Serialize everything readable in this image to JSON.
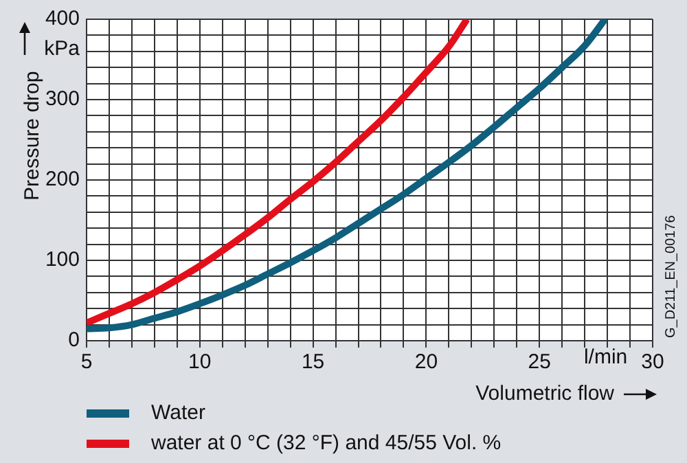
{
  "chart_data": {
    "type": "line",
    "xlabel": "Volumetric flow",
    "ylabel": "Pressure drop",
    "xlim": [
      5,
      30
    ],
    "xticks": [
      5,
      {
        "value": 6,
        "label": null
      },
      {
        "value": 7,
        "label": null
      },
      {
        "value": 8,
        "label": null
      },
      {
        "value": 9,
        "label": null
      },
      10,
      {
        "value": 11,
        "label": null
      },
      {
        "value": 12,
        "label": null
      },
      {
        "value": 13,
        "label": null
      },
      {
        "value": 14,
        "label": null
      },
      15,
      {
        "value": 16,
        "label": null
      },
      {
        "value": 17,
        "label": null
      },
      {
        "value": 18,
        "label": null
      },
      {
        "value": 19,
        "label": null
      },
      20,
      {
        "value": 21,
        "label": null
      },
      {
        "value": 22,
        "label": null
      },
      {
        "value": 23,
        "label": null
      },
      {
        "value": 24,
        "label": null
      },
      25,
      {
        "value": 26,
        "label": null
      },
      {
        "value": 27,
        "label": null
      },
      {
        "value": 28,
        "label": null
      },
      {
        "value": 29,
        "label": null
      },
      30
    ],
    "ylim": [
      0,
      400
    ],
    "yticks": [
      0,
      {
        "value": 20,
        "label": null
      },
      {
        "value": 40,
        "label": null
      },
      {
        "value": 60,
        "label": null
      },
      {
        "value": 80,
        "label": null
      },
      100,
      {
        "value": 120,
        "label": null
      },
      {
        "value": 140,
        "label": null
      },
      {
        "value": 160,
        "label": null
      },
      {
        "value": 180,
        "label": null
      },
      200,
      {
        "value": 220,
        "label": null
      },
      {
        "value": 240,
        "label": null
      },
      {
        "value": 260,
        "label": null
      },
      {
        "value": 280,
        "label": null
      },
      300,
      {
        "value": 320,
        "label": null
      },
      {
        "value": 340,
        "label": null
      },
      {
        "value": 360,
        "label": null
      },
      {
        "value": 380,
        "label": null
      },
      400
    ],
    "grid": true,
    "legend": "bottom left",
    "marker": "none",
    "line_style": "solid",
    "annotations": [
      "kPa",
      "l/min",
      "G_D211_EN_00176"
    ],
    "series": [
      {
        "name": "Water",
        "color": "#0f5f7d",
        "x": [
          5,
          6,
          7,
          8,
          9,
          10,
          11,
          12,
          13,
          14,
          15,
          16,
          17,
          18,
          19,
          20,
          21,
          22,
          23,
          24,
          25,
          26,
          27,
          27.9
        ],
        "values": [
          15,
          16,
          20,
          28,
          36,
          46,
          57,
          69,
          83,
          97,
          112,
          128,
          146,
          164,
          182,
          202,
          222,
          243,
          266,
          290,
          314,
          340,
          367,
          400
        ]
      },
      {
        "name": "water at 0 °C (32 °F) and 45/55 Vol. %",
        "color": "#e3101c",
        "x": [
          5,
          6,
          7,
          8,
          9,
          10,
          11,
          12,
          13,
          14,
          15,
          16,
          17,
          18,
          19,
          20,
          21,
          21.8
        ],
        "values": [
          22,
          34,
          46,
          60,
          76,
          93,
          112,
          132,
          153,
          176,
          198,
          222,
          248,
          274,
          303,
          334,
          366,
          400
        ]
      }
    ]
  }
}
